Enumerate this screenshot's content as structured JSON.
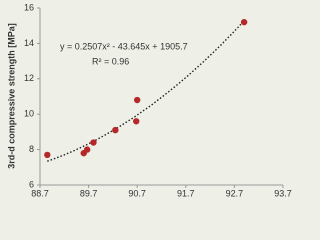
{
  "chart_data": {
    "type": "scatter",
    "y_label": "3rd-d compressive strength [MPa]",
    "annotations": [
      "y = 0.2507x² - 43.645x + 1905.7",
      "R² = 0.96"
    ],
    "x": [
      88.85,
      89.6,
      89.67,
      89.8,
      90.25,
      90.68,
      90.7,
      92.9
    ],
    "values": [
      7.7,
      7.8,
      8.0,
      8.4,
      9.1,
      9.6,
      10.8,
      15.2
    ],
    "color": "#b5282a",
    "trendline_color": "#222",
    "xlim": [
      88.7,
      93.7
    ],
    "xticks": [
      88.7,
      89.7,
      90.7,
      91.7,
      92.7,
      93.7
    ],
    "ylim": [
      6,
      16
    ],
    "yticks": [
      6,
      8,
      10,
      12,
      14,
      16
    ]
  }
}
